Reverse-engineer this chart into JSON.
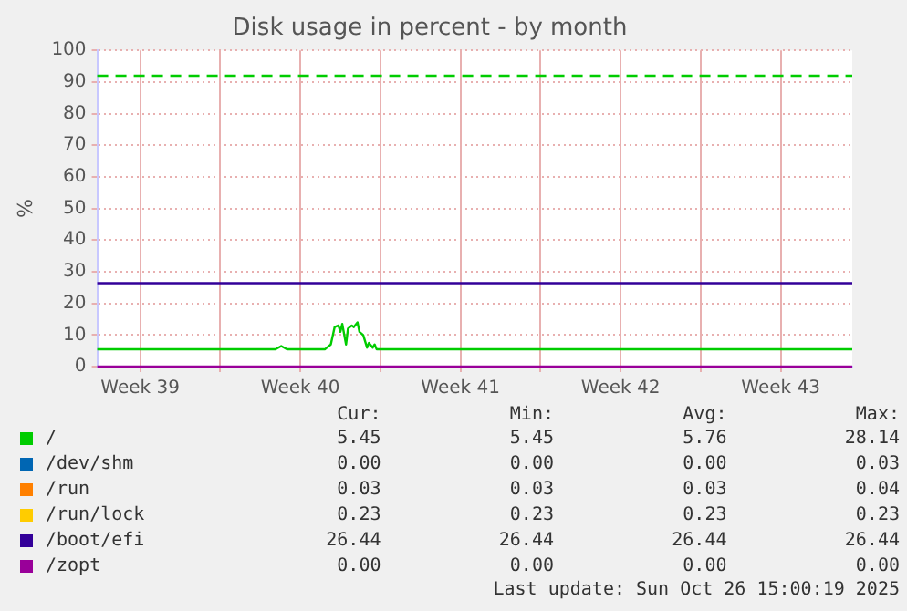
{
  "chart_data": {
    "type": "line",
    "title": "Disk usage in percent - by month",
    "ylabel": "%",
    "xlim": [
      "2025-09-23T15:00",
      "2025-10-26T15:00"
    ],
    "xticks": [
      {
        "value": "2025-09-25T12:00",
        "label": "Week 39"
      },
      {
        "value": "2025-09-29",
        "label": null
      },
      {
        "value": "2025-10-02T12:00",
        "label": "Week 40"
      },
      {
        "value": "2025-10-06",
        "label": null
      },
      {
        "value": "2025-10-09T12:00",
        "label": "Week 41"
      },
      {
        "value": "2025-10-13",
        "label": null
      },
      {
        "value": "2025-10-16T12:00",
        "label": "Week 42"
      },
      {
        "value": "2025-10-20",
        "label": null
      },
      {
        "value": "2025-10-23T12:00",
        "label": "Week 43"
      }
    ],
    "ylim": [
      0,
      100
    ],
    "yticks": [
      0,
      10,
      20,
      30,
      40,
      50,
      60,
      70,
      80,
      90,
      100
    ],
    "grid": true,
    "legend": "bottom",
    "marker": "none",
    "line_style": "solid",
    "series": [
      {
        "name": "/",
        "color": "#00cc00",
        "x": [
          "2025-09-23T15:00",
          "2025-10-01T10:00",
          "2025-10-01T16:00",
          "2025-10-01T22:00",
          "2025-10-03T14:00",
          "2025-10-03T16:00",
          "2025-10-03T20:00",
          "2025-10-04T00:00",
          "2025-10-04T04:00",
          "2025-10-04T06:00",
          "2025-10-04T08:00",
          "2025-10-04T12:00",
          "2025-10-04T14:00",
          "2025-10-04T18:00",
          "2025-10-04T20:00",
          "2025-10-05T00:00",
          "2025-10-05T02:00",
          "2025-10-05T06:00",
          "2025-10-05T10:00",
          "2025-10-05T12:00",
          "2025-10-05T16:00",
          "2025-10-05T18:00",
          "2025-10-05T20:00",
          "2025-10-26T15:00"
        ],
        "values": [
          5.5,
          5.5,
          6.5,
          5.5,
          5.5,
          6,
          7,
          12.5,
          13,
          11,
          13.5,
          7,
          12,
          13,
          12.5,
          14,
          11,
          10,
          6,
          7.5,
          6,
          7,
          5.5,
          5.5
        ]
      },
      {
        "name": "/dev/shm",
        "color": "#0066b3"
      },
      {
        "name": "/run",
        "color": "#ff8000"
      },
      {
        "name": "/run/lock",
        "color": "#ffcc00"
      },
      {
        "name": "/boot/efi",
        "color": "#330099",
        "x": [
          "2025-09-23T15:00",
          "2025-10-26T15:00"
        ],
        "values": [
          26.4,
          26.4
        ]
      },
      {
        "name": "/zopt",
        "color": "#990099",
        "x": [
          "2025-09-23T15:00",
          "2025-10-26T15:00"
        ],
        "values": [
          0,
          0
        ]
      }
    ],
    "ref_lines": [
      {
        "axis": "y",
        "value": 92,
        "color": "#00cc00",
        "line_style": "dashed"
      }
    ],
    "annotations": [
      "Cur:",
      "Min:",
      "Avg:",
      "Max:",
      "5.45",
      "5.45",
      "5.76",
      "28.14",
      "0.00",
      "0.00",
      "0.00",
      "0.03",
      "0.03",
      "0.03",
      "0.03",
      "0.04",
      "0.23",
      "0.23",
      "0.23",
      "0.23",
      "26.44",
      "26.44",
      "26.44",
      "26.44",
      "0.00",
      "0.00",
      "0.00",
      "0.00",
      "Last update: Sun Oct 26 15:00:19 2025"
    ]
  }
}
